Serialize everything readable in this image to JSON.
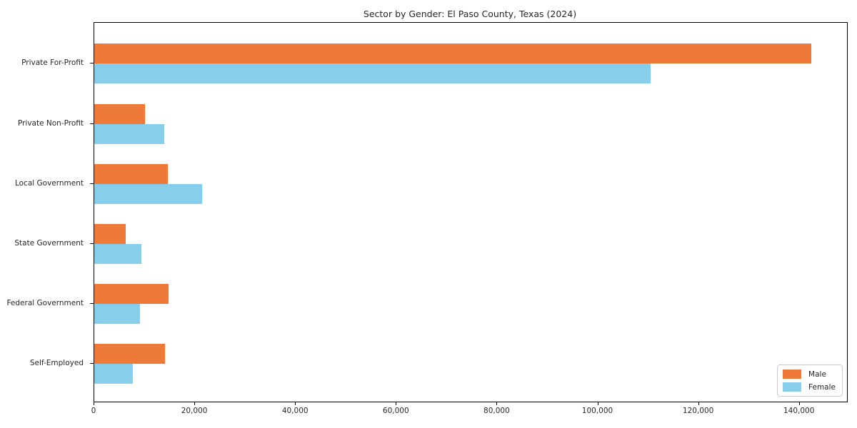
{
  "chart_data": {
    "type": "bar",
    "orientation": "horizontal",
    "title": "Sector by Gender: El Paso County, Texas (2024)",
    "categories": [
      "Private For-Profit",
      "Private Non-Profit",
      "Local Government",
      "State Government",
      "Federal Government",
      "Self-Employed"
    ],
    "series": [
      {
        "name": "Male",
        "color": "#ed7a39",
        "values": [
          142300,
          10000,
          14600,
          6200,
          14700,
          14000
        ]
      },
      {
        "name": "Female",
        "color": "#87ceeb",
        "values": [
          110400,
          13900,
          21400,
          9400,
          9100,
          7700
        ]
      }
    ],
    "xlabel": "",
    "ylabel": "",
    "xlim": [
      0,
      149400
    ],
    "xticks": [
      0,
      20000,
      40000,
      60000,
      80000,
      100000,
      120000,
      140000
    ],
    "xtick_labels": [
      "0",
      "20,000",
      "40,000",
      "60,000",
      "80,000",
      "100,000",
      "120,000",
      "140,000"
    ],
    "grid": false,
    "legend": {
      "position": "lower right",
      "entries": [
        {
          "label": "Male",
          "color": "#ed7a39"
        },
        {
          "label": "Female",
          "color": "#87ceeb"
        }
      ]
    }
  }
}
